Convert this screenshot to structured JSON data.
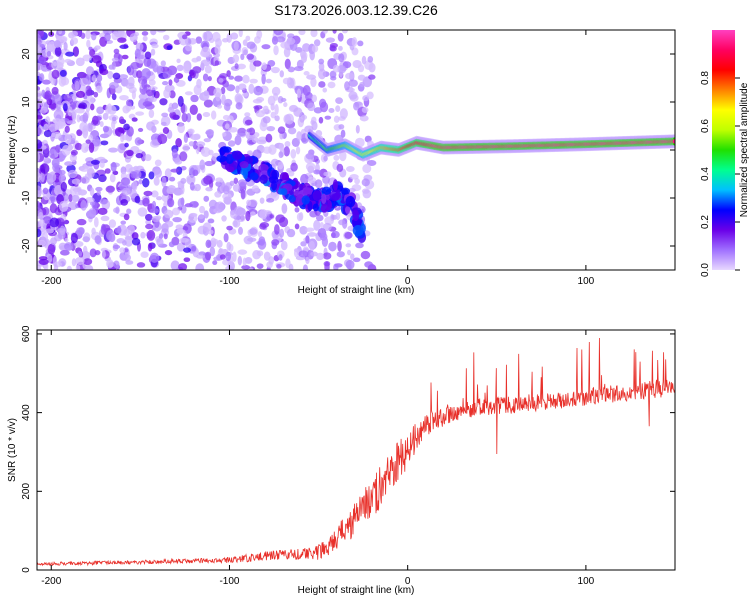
{
  "figure": {
    "title": "S173.2026.003.12.39.C26"
  },
  "chart_data": [
    {
      "type": "heatmap",
      "title": "S173.2026.003.12.39.C26",
      "xlabel": "Height of straight line (km)",
      "ylabel": "Frequency (Hz)",
      "xlim": [
        -208,
        150
      ],
      "ylim": [
        -25,
        25
      ],
      "xticks": [
        -200,
        -100,
        0,
        100
      ],
      "xtick_labels": [
        "-200",
        "-100",
        "0",
        "100"
      ],
      "yticks": [
        -20,
        -10,
        0,
        10,
        20
      ],
      "ytick_labels": [
        "-20",
        "-10",
        "0",
        "10",
        "20"
      ],
      "colorbar": {
        "label": "Normalized spectral amplitude",
        "range": [
          0,
          1
        ],
        "ticks": [
          0.0,
          0.2,
          0.4,
          0.6,
          0.8
        ],
        "tick_labels": [
          "0.0",
          "0.2",
          "0.4",
          "0.6",
          "0.8"
        ],
        "colors": [
          "#e8d8ff",
          "#a070ff",
          "#6a00e8",
          "#0000ff",
          "#00c0ff",
          "#00ff90",
          "#20e000",
          "#c0ff00",
          "#ffff00",
          "#ff8000",
          "#ff0000",
          "#ff0060",
          "#ff40c0"
        ]
      },
      "features": {
        "noise_region_x": [
          -208,
          -20
        ],
        "ridge_main": [
          [
            -55,
            3
          ],
          [
            -45,
            0
          ],
          [
            -35,
            1
          ],
          [
            -25,
            -1
          ],
          [
            -15,
            0.5
          ],
          [
            -5,
            0
          ],
          [
            5,
            1.5
          ],
          [
            20,
            0.5
          ],
          [
            60,
            0.8
          ],
          [
            100,
            1.2
          ],
          [
            150,
            1.8
          ]
        ],
        "ridge_branch": [
          [
            -105,
            -1
          ],
          [
            -95,
            -3
          ],
          [
            -85,
            -4
          ],
          [
            -75,
            -6
          ],
          [
            -62,
            -9
          ],
          [
            -50,
            -11
          ],
          [
            -40,
            -9
          ],
          [
            -30,
            -12
          ],
          [
            -25,
            -19
          ]
        ]
      }
    },
    {
      "type": "line",
      "xlabel": "Height of straight line (km)",
      "ylabel": "SNR (10 * v/v)",
      "xlim": [
        -208,
        150
      ],
      "ylim": [
        0,
        610
      ],
      "xticks": [
        -200,
        -100,
        0,
        100
      ],
      "xtick_labels": [
        "-200",
        "-100",
        "0",
        "100"
      ],
      "yticks": [
        0,
        200,
        400,
        600
      ],
      "ytick_labels": [
        "0",
        "200",
        "400",
        "600"
      ],
      "color": "#e8302a",
      "series": [
        {
          "name": "SNR",
          "trend_x": [
            -208,
            -150,
            -100,
            -80,
            -60,
            -50,
            -40,
            -30,
            -25,
            -20,
            -15,
            -10,
            -5,
            0,
            5,
            10,
            20,
            30,
            40,
            60,
            80,
            100,
            120,
            150
          ],
          "trend_y": [
            15,
            20,
            25,
            35,
            40,
            45,
            80,
            130,
            160,
            190,
            210,
            250,
            280,
            300,
            340,
            370,
            390,
            405,
            415,
            420,
            430,
            440,
            450,
            465
          ],
          "noise_amplitude": [
            8,
            10,
            14,
            25,
            30,
            40,
            70,
            90,
            100,
            110,
            110,
            100,
            100,
            90,
            80,
            60,
            50,
            45,
            45,
            45,
            45,
            45,
            45,
            45
          ]
        }
      ]
    }
  ]
}
